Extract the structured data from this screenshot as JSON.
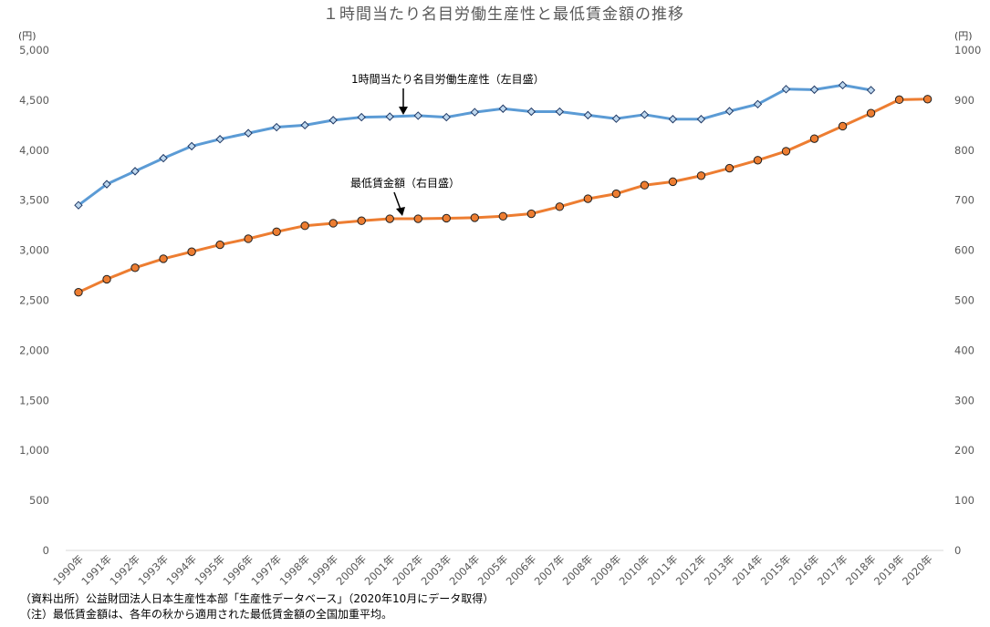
{
  "chart_data": {
    "type": "line",
    "title": "１時間当たり名目労働生産性と最低賃金額の推移",
    "categories": [
      "1990年",
      "1991年",
      "1992年",
      "1993年",
      "1994年",
      "1995年",
      "1996年",
      "1997年",
      "1998年",
      "1999年",
      "2000年",
      "2001年",
      "2002年",
      "2003年",
      "2004年",
      "2005年",
      "2006年",
      "2007年",
      "2008年",
      "2009年",
      "2010年",
      "2011年",
      "2012年",
      "2013年",
      "2014年",
      "2015年",
      "2016年",
      "2017年",
      "2018年",
      "2019年",
      "2020年"
    ],
    "y_left": {
      "unit": "(円)",
      "ylim": [
        0,
        5000
      ],
      "ticks": [
        "0",
        "500",
        "1,000",
        "1,500",
        "2,000",
        "2,500",
        "3,000",
        "3,500",
        "4,000",
        "4,500",
        "5,000"
      ]
    },
    "y_right": {
      "unit": "(円)",
      "ylim": [
        0,
        1000
      ],
      "ticks": [
        "0",
        "100",
        "200",
        "300",
        "400",
        "500",
        "600",
        "700",
        "800",
        "900",
        "1000"
      ]
    },
    "series": [
      {
        "name": "1時間当たり名目労働生産性（左目盛）",
        "axis": "left",
        "color": "#5b9bd5",
        "marker": "diamond",
        "values": [
          3450,
          3660,
          3790,
          3920,
          4040,
          4110,
          4170,
          4230,
          4250,
          4300,
          4330,
          4335,
          4345,
          4330,
          4380,
          4415,
          4385,
          4385,
          4350,
          4315,
          4355,
          4310,
          4310,
          4390,
          4460,
          4610,
          4605,
          4650,
          4600,
          null,
          null
        ]
      },
      {
        "name": "最低賃金額（右目盛）",
        "axis": "right",
        "color": "#ed7d31",
        "marker": "circle",
        "values": [
          516,
          542,
          565,
          583,
          597,
          611,
          623,
          637,
          649,
          654,
          659,
          663,
          663,
          664,
          665,
          668,
          673,
          687,
          703,
          713,
          730,
          737,
          749,
          764,
          780,
          798,
          823,
          848,
          874,
          901,
          902
        ]
      }
    ],
    "grid": false,
    "legend": "inline annotations"
  },
  "notes": {
    "source": "（資料出所）公益財団法人日本生産性本部「生産性データベース」（2020年10月にデータ取得）",
    "remark": "（注）最低賃金額は、各年の秋から適用された最低賃金額の全国加重平均。"
  }
}
